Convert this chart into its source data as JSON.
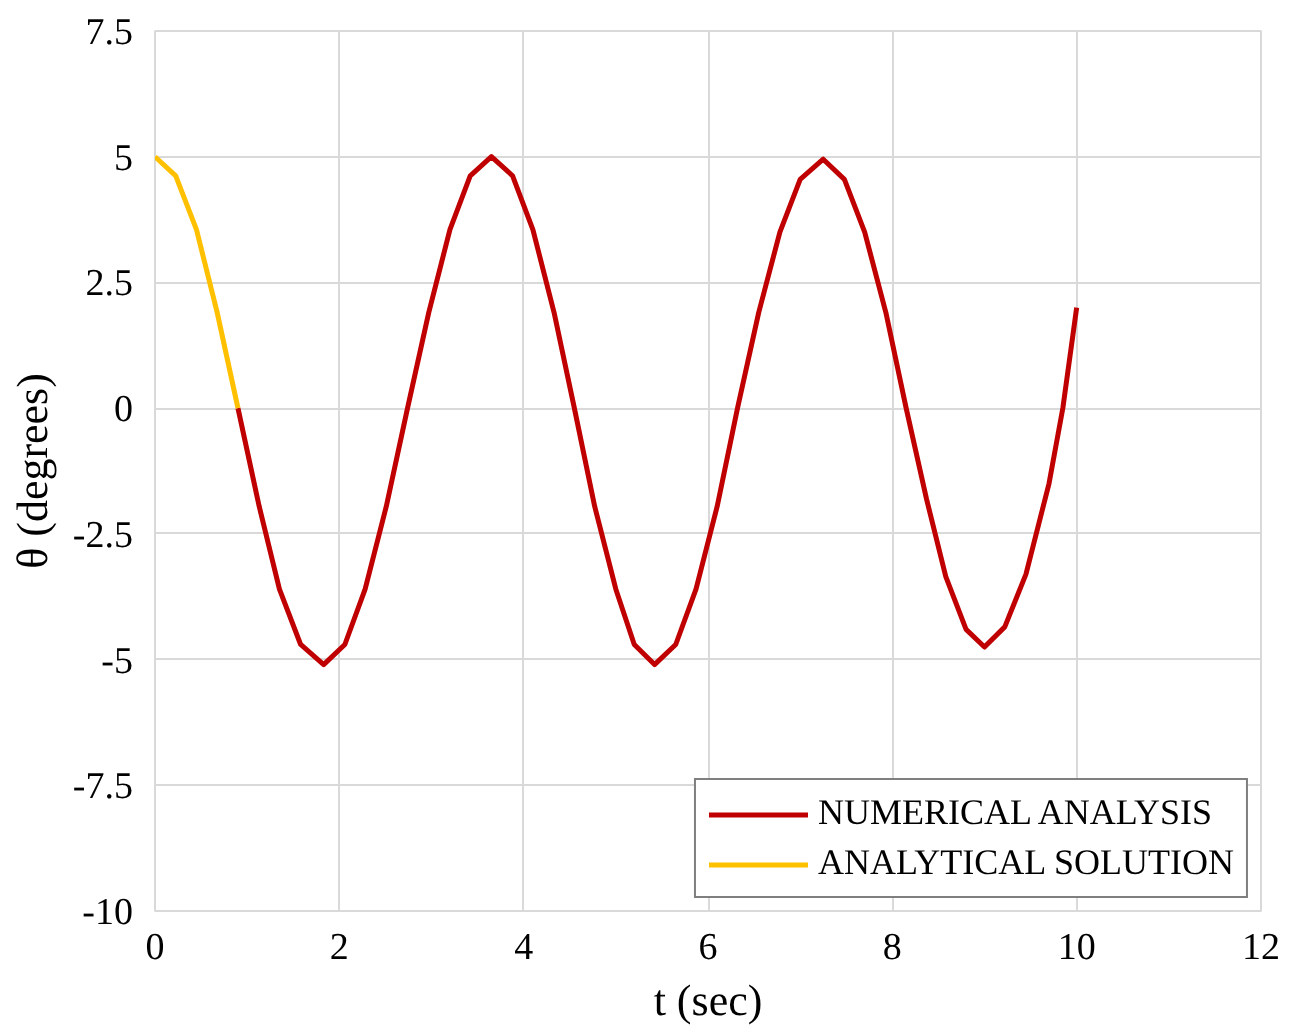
{
  "chart_data": {
    "type": "line",
    "xlabel": "t (sec)",
    "ylabel": "θ (degrees)",
    "xlim": [
      0,
      12
    ],
    "ylim": [
      -10,
      7.5
    ],
    "xticks": [
      0,
      2,
      4,
      6,
      8,
      10,
      12
    ],
    "yticks": [
      -10,
      -7.5,
      -5,
      -2.5,
      0,
      2.5,
      5,
      7.5
    ],
    "grid": true,
    "legend": "bottom right",
    "marker": "none",
    "line_style": "solid",
    "series": [
      {
        "name": "NUMERICAL ANALYSIS",
        "color": "#c00000",
        "x": [
          0.9,
          1.13,
          1.35,
          1.58,
          1.83,
          2.06,
          2.28,
          2.51,
          2.74,
          2.97,
          3.2,
          3.42,
          3.65,
          3.88,
          4.1,
          4.33,
          4.55,
          4.77,
          5.0,
          5.2,
          5.42,
          5.65,
          5.87,
          6.1,
          6.32,
          6.55,
          6.78,
          7.0,
          7.25,
          7.48,
          7.7,
          7.93,
          8.15,
          8.37,
          8.58,
          8.8,
          9.0,
          9.22,
          9.45,
          9.7,
          9.85,
          10
        ],
        "values": [
          0,
          -1.95,
          -3.6,
          -4.7,
          -5.1,
          -4.7,
          -3.6,
          -1.95,
          0,
          1.9,
          3.55,
          4.62,
          5.0,
          4.62,
          3.55,
          1.9,
          0,
          -1.95,
          -3.6,
          -4.7,
          -5.1,
          -4.7,
          -3.6,
          -1.95,
          0,
          1.9,
          3.5,
          4.55,
          4.95,
          4.55,
          3.5,
          1.9,
          0,
          -1.8,
          -3.35,
          -4.4,
          -4.75,
          -4.35,
          -3.3,
          -1.5,
          0,
          2.0
        ]
      },
      {
        "name": "ANALYTICAL SOLUTION",
        "color": "#ffc000",
        "x": [
          0,
          0.225,
          0.45,
          0.675,
          0.9
        ],
        "values": [
          5,
          4.62,
          3.55,
          1.9,
          0
        ]
      }
    ]
  }
}
